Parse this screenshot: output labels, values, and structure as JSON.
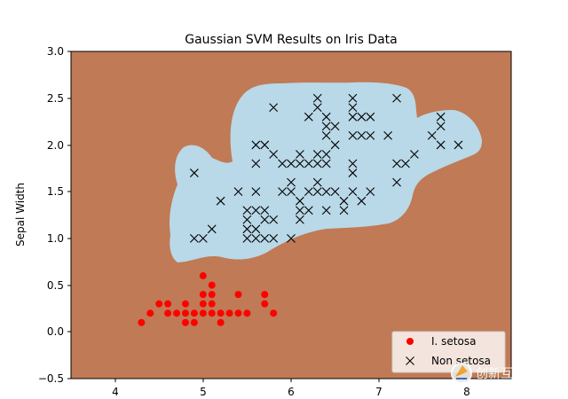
{
  "chart_data": {
    "type": "scatter",
    "title": "Gaussian SVM Results on Iris Data",
    "xlabel": "",
    "ylabel": "Sepal Width",
    "xlim": [
      3.5,
      8.5
    ],
    "ylim": [
      -0.5,
      3.0
    ],
    "xticks": [
      "4",
      "5",
      "6",
      "7",
      "8"
    ],
    "yticks": [
      "−0.5",
      "0.0",
      "0.5",
      "1.0",
      "1.5",
      "2.0",
      "2.5",
      "3.0"
    ],
    "grid": false,
    "legend_position": "bottom-right",
    "colors": {
      "setosa_region": "#c07a55",
      "non_setosa_region": "#b9d8e8",
      "setosa_marker": "#ff0000",
      "non_setosa_marker": "#000000"
    },
    "series": [
      {
        "name": "I. setosa",
        "marker": "o",
        "points": [
          [
            4.3,
            0.1
          ],
          [
            4.4,
            0.2
          ],
          [
            4.5,
            0.3
          ],
          [
            4.6,
            0.2
          ],
          [
            4.6,
            0.3
          ],
          [
            4.7,
            0.2
          ],
          [
            4.8,
            0.1
          ],
          [
            4.8,
            0.2
          ],
          [
            4.8,
            0.3
          ],
          [
            4.9,
            0.1
          ],
          [
            4.9,
            0.2
          ],
          [
            5.0,
            0.2
          ],
          [
            5.0,
            0.3
          ],
          [
            5.0,
            0.4
          ],
          [
            5.0,
            0.6
          ],
          [
            5.1,
            0.2
          ],
          [
            5.1,
            0.3
          ],
          [
            5.1,
            0.4
          ],
          [
            5.1,
            0.5
          ],
          [
            5.2,
            0.1
          ],
          [
            5.2,
            0.2
          ],
          [
            5.3,
            0.2
          ],
          [
            5.4,
            0.2
          ],
          [
            5.4,
            0.4
          ],
          [
            5.5,
            0.2
          ],
          [
            5.7,
            0.3
          ],
          [
            5.7,
            0.4
          ],
          [
            5.8,
            0.2
          ]
        ]
      },
      {
        "name": "Non setosa",
        "marker": "x",
        "points": [
          [
            4.9,
            1.0
          ],
          [
            5.0,
            1.0
          ],
          [
            4.9,
            1.7
          ],
          [
            5.1,
            1.1
          ],
          [
            5.2,
            1.4
          ],
          [
            5.4,
            1.5
          ],
          [
            5.5,
            1.0
          ],
          [
            5.5,
            1.1
          ],
          [
            5.5,
            1.2
          ],
          [
            5.5,
            1.3
          ],
          [
            5.6,
            1.0
          ],
          [
            5.6,
            1.1
          ],
          [
            5.6,
            1.3
          ],
          [
            5.6,
            1.5
          ],
          [
            5.6,
            1.8
          ],
          [
            5.6,
            2.0
          ],
          [
            5.7,
            1.0
          ],
          [
            5.7,
            1.2
          ],
          [
            5.7,
            1.3
          ],
          [
            5.7,
            2.0
          ],
          [
            5.8,
            1.0
          ],
          [
            5.8,
            1.2
          ],
          [
            5.8,
            1.9
          ],
          [
            5.8,
            2.4
          ],
          [
            5.9,
            1.5
          ],
          [
            5.9,
            1.8
          ],
          [
            6.0,
            1.0
          ],
          [
            6.0,
            1.5
          ],
          [
            6.0,
            1.6
          ],
          [
            6.0,
            1.8
          ],
          [
            6.1,
            1.2
          ],
          [
            6.1,
            1.3
          ],
          [
            6.1,
            1.4
          ],
          [
            6.1,
            1.8
          ],
          [
            6.1,
            1.9
          ],
          [
            6.2,
            1.3
          ],
          [
            6.2,
            1.5
          ],
          [
            6.2,
            1.8
          ],
          [
            6.2,
            2.3
          ],
          [
            6.3,
            1.5
          ],
          [
            6.3,
            1.6
          ],
          [
            6.3,
            1.8
          ],
          [
            6.3,
            1.9
          ],
          [
            6.3,
            2.4
          ],
          [
            6.3,
            2.5
          ],
          [
            6.4,
            1.3
          ],
          [
            6.4,
            1.5
          ],
          [
            6.4,
            1.8
          ],
          [
            6.4,
            1.9
          ],
          [
            6.4,
            2.1
          ],
          [
            6.4,
            2.2
          ],
          [
            6.4,
            2.3
          ],
          [
            6.5,
            1.5
          ],
          [
            6.5,
            2.0
          ],
          [
            6.5,
            2.2
          ],
          [
            6.6,
            1.3
          ],
          [
            6.6,
            1.4
          ],
          [
            6.7,
            1.5
          ],
          [
            6.7,
            1.7
          ],
          [
            6.7,
            1.8
          ],
          [
            6.7,
            2.1
          ],
          [
            6.7,
            2.3
          ],
          [
            6.7,
            2.4
          ],
          [
            6.7,
            2.5
          ],
          [
            6.8,
            1.4
          ],
          [
            6.8,
            2.1
          ],
          [
            6.8,
            2.3
          ],
          [
            6.9,
            1.5
          ],
          [
            6.9,
            2.1
          ],
          [
            6.9,
            2.3
          ],
          [
            7.1,
            2.1
          ],
          [
            7.2,
            1.6
          ],
          [
            7.2,
            1.8
          ],
          [
            7.2,
            2.5
          ],
          [
            7.3,
            1.8
          ],
          [
            7.4,
            1.9
          ],
          [
            7.6,
            2.1
          ],
          [
            7.7,
            2.0
          ],
          [
            7.7,
            2.2
          ],
          [
            7.7,
            2.3
          ],
          [
            7.9,
            2.0
          ]
        ]
      }
    ]
  },
  "watermark": {
    "text": "创新互联",
    "icon": "logo-icon"
  }
}
